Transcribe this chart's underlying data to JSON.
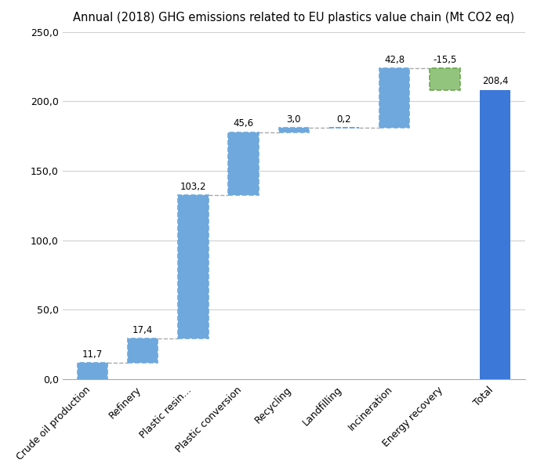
{
  "title": "Annual (2018) GHG emissions related to EU plastics value chain (Mt CO2 eq)",
  "categories": [
    "Crude oil production",
    "Refinery",
    "Plastic resin...",
    "Plastic conversion",
    "Recycling",
    "Landfilling",
    "Incineration",
    "Energy recovery",
    "Total"
  ],
  "values": [
    11.7,
    17.4,
    103.2,
    45.6,
    3.0,
    0.2,
    42.8,
    -15.5,
    208.4
  ],
  "labels": [
    "11,7",
    "17,4",
    "103,2",
    "45,6",
    "3,0",
    "0,2",
    "42,8",
    "-15,5",
    "208,4"
  ],
  "is_total": [
    false,
    false,
    false,
    false,
    false,
    false,
    false,
    false,
    true
  ],
  "is_negative": [
    false,
    false,
    false,
    false,
    false,
    false,
    false,
    true,
    false
  ],
  "bar_color_positive": "#6fa8dc",
  "bar_color_negative": "#93c47d",
  "bar_color_total": "#3c78d8",
  "bar_edge_color_waterfall": "#6fa8dc",
  "bar_edge_color_negative": "#6aa84f",
  "ylim": [
    0,
    250
  ],
  "yticks": [
    0,
    50,
    100,
    150,
    200,
    250
  ],
  "ytick_labels": [
    "0,0",
    "50,0",
    "100,0",
    "150,0",
    "200,0",
    "250,0"
  ],
  "background_color": "#ffffff",
  "grid_color": "#d0d0d0",
  "title_fontsize": 10.5,
  "label_fontsize": 8.5,
  "tick_fontsize": 9
}
